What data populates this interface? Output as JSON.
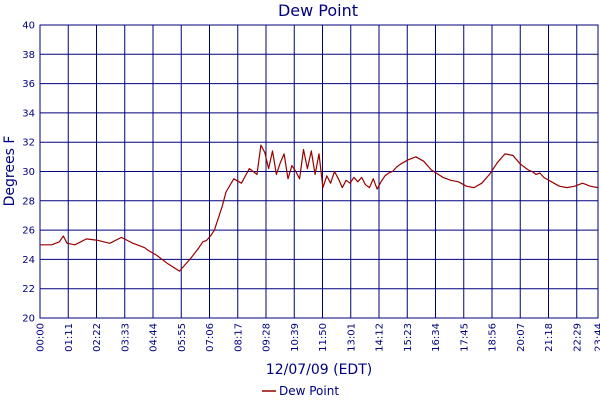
{
  "chart_data": {
    "type": "line",
    "title": "Dew Point",
    "xlabel": "12/07/09 (EDT)",
    "ylabel": "Degrees F",
    "ylim": [
      20,
      40
    ],
    "yticks": [
      20,
      22,
      24,
      26,
      28,
      30,
      32,
      34,
      36,
      38,
      40
    ],
    "xlim_minutes": [
      0,
      1440
    ],
    "xtick_labels": [
      "00:00",
      "01:11",
      "02:22",
      "03:33",
      "04:44",
      "05:55",
      "07:06",
      "08:17",
      "09:28",
      "10:39",
      "11:50",
      "13:01",
      "14:12",
      "15:23",
      "16:34",
      "17:45",
      "18:56",
      "20:07",
      "21:18",
      "22:29",
      "23:40",
      "23:44"
    ],
    "grid": true,
    "legend_position": "bottom-center",
    "colors": {
      "series": "#990000",
      "grid": "#00007f",
      "text": "#00007f"
    },
    "series": [
      {
        "name": "Dew Point",
        "x_minutes": [
          0,
          30,
          50,
          60,
          70,
          90,
          120,
          150,
          180,
          210,
          240,
          260,
          270,
          280,
          300,
          330,
          360,
          390,
          410,
          420,
          430,
          440,
          450,
          470,
          480,
          500,
          520,
          540,
          560,
          570,
          580,
          590,
          600,
          610,
          620,
          630,
          640,
          650,
          660,
          670,
          680,
          690,
          700,
          710,
          720,
          730,
          740,
          750,
          760,
          770,
          780,
          790,
          800,
          810,
          820,
          830,
          840,
          850,
          860,
          870,
          880,
          890,
          900,
          910,
          920,
          930,
          950,
          970,
          990,
          1010,
          1040,
          1050,
          1060,
          1080,
          1100,
          1120,
          1140,
          1160,
          1180,
          1200,
          1220,
          1240,
          1260,
          1270,
          1280,
          1290,
          1300,
          1320,
          1340,
          1360,
          1380,
          1400,
          1420,
          1440
        ],
        "y": [
          25.0,
          25.0,
          25.2,
          25.6,
          25.1,
          25.0,
          25.4,
          25.3,
          25.1,
          25.5,
          25.1,
          24.9,
          24.8,
          24.6,
          24.3,
          23.7,
          23.2,
          24.1,
          24.8,
          25.2,
          25.3,
          25.6,
          26.0,
          27.6,
          28.6,
          29.5,
          29.2,
          30.2,
          29.8,
          31.8,
          31.3,
          30.2,
          31.4,
          29.8,
          30.6,
          31.2,
          29.5,
          30.4,
          30.0,
          29.5,
          31.5,
          30.2,
          31.4,
          29.8,
          31.2,
          28.9,
          29.7,
          29.2,
          30.0,
          29.5,
          28.9,
          29.4,
          29.2,
          29.6,
          29.3,
          29.6,
          29.1,
          28.9,
          29.5,
          28.8,
          29.3,
          29.7,
          29.9,
          30.0,
          30.3,
          30.5,
          30.8,
          31.0,
          30.7,
          30.1,
          29.6,
          29.5,
          29.4,
          29.3,
          29.0,
          28.9,
          29.2,
          29.8,
          30.6,
          31.2,
          31.1,
          30.5,
          30.1,
          30.0,
          29.8,
          29.9,
          29.6,
          29.3,
          29.0,
          28.9,
          29.0,
          29.2,
          29.0,
          28.9
        ]
      }
    ]
  }
}
